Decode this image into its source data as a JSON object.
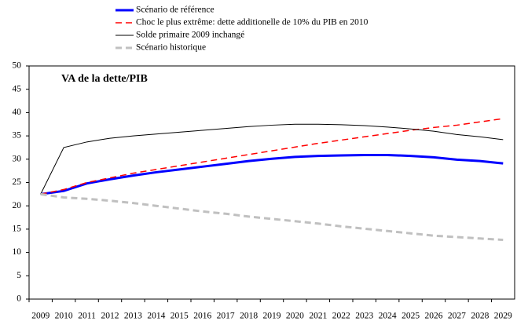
{
  "chart_data": {
    "type": "line",
    "title": "VA de la dette/PIB",
    "categories": [
      "2009",
      "2010",
      "2011",
      "2012",
      "2013",
      "2014",
      "2015",
      "2016",
      "2017",
      "2018",
      "2019",
      "2020",
      "2021",
      "2022",
      "2023",
      "2024",
      "2025",
      "2026",
      "2027",
      "2028",
      "2029"
    ],
    "series": [
      {
        "name": "Scénario de référence",
        "color": "#0000ff",
        "line_style": "solid",
        "values": [
          22.5,
          23.2,
          24.8,
          25.7,
          26.5,
          27.2,
          27.8,
          28.4,
          29.0,
          29.6,
          30.1,
          30.5,
          30.7,
          30.8,
          30.9,
          30.9,
          30.7,
          30.4,
          29.9,
          29.6,
          29.1
        ]
      },
      {
        "name": "Choc le plus extrême: dette additionelle de 10% du PIB en 2010",
        "color": "#ff0000",
        "line_style": "dashed",
        "values": [
          22.5,
          23.5,
          25.0,
          26.0,
          27.0,
          27.8,
          28.6,
          29.4,
          30.2,
          31.0,
          31.8,
          32.6,
          33.4,
          34.1,
          34.8,
          35.5,
          36.2,
          36.8,
          37.3,
          38.0,
          38.7
        ]
      },
      {
        "name": "Solde primaire 2009 inchangé",
        "color": "#000000",
        "line_style": "solid",
        "values": [
          22.5,
          32.5,
          33.7,
          34.5,
          35.0,
          35.4,
          35.8,
          36.2,
          36.6,
          37.0,
          37.3,
          37.5,
          37.5,
          37.4,
          37.2,
          36.9,
          36.5,
          36.0,
          35.3,
          34.8,
          34.2
        ]
      },
      {
        "name": "Scénario historique",
        "color": "#c0c0c0",
        "line_style": "dashed",
        "values": [
          22.5,
          21.8,
          21.5,
          21.1,
          20.6,
          20.0,
          19.4,
          18.8,
          18.3,
          17.7,
          17.2,
          16.7,
          16.2,
          15.6,
          15.1,
          14.6,
          14.1,
          13.6,
          13.3,
          13.0,
          12.7
        ]
      }
    ],
    "ylim": [
      0,
      50
    ],
    "yticks": [
      0,
      5,
      10,
      15,
      20,
      25,
      30,
      35,
      40,
      45,
      50
    ],
    "grid": false
  }
}
